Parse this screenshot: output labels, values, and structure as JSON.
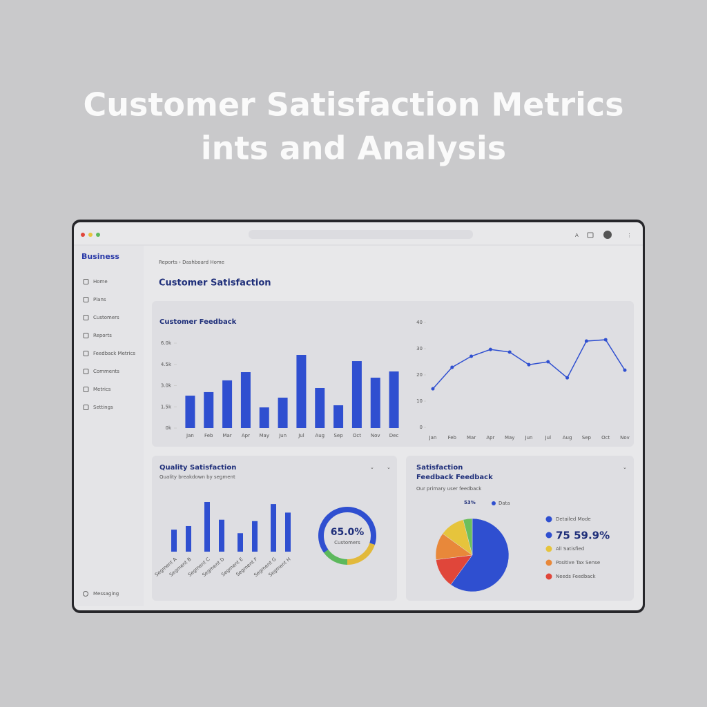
{
  "header": {
    "title_lines": [
      "Customer Satisfaction Metrics",
      "ints and Analysis"
    ]
  },
  "sidebar": {
    "brand": "Business",
    "nav": [
      "Home",
      "Plans",
      "Customers",
      "Reports",
      "Feedback Metrics",
      "Comments",
      "Metrics",
      "Settings"
    ],
    "footer": "Messaging"
  },
  "breadcrumb": "Reports  ›  Dashboard Home",
  "page_title": "Customer Satisfaction",
  "feedback_panel": {
    "title": "Customer Feedback",
    "bar_chart": {
      "type": "bar",
      "categories": [
        "Jan",
        "Feb",
        "Mar",
        "Apr",
        "May",
        "Jun",
        "Jul",
        "Aug",
        "Sep",
        "Oct",
        "Nov",
        "Dec"
      ],
      "values": [
        2290,
        2540,
        3370,
        3950,
        1460,
        2150,
        5170,
        2830,
        1610,
        4730,
        3560,
        4000
      ],
      "color": "#2f4fd0",
      "ylim": [
        0,
        6000
      ],
      "yticks": [
        {
          "value": 0,
          "label": "0k"
        },
        {
          "value": 1500,
          "label": "1.5k"
        },
        {
          "value": 3000,
          "label": "3.0k"
        },
        {
          "value": 4500,
          "label": "4.5k"
        },
        {
          "value": 6000,
          "label": "6.0k"
        }
      ]
    },
    "line_chart": {
      "type": "line",
      "categories": [
        "Jan",
        "Feb",
        "Mar",
        "Apr",
        "May",
        "Jun",
        "Jul",
        "Aug",
        "Sep",
        "Oct",
        "Nov"
      ],
      "values": [
        14.7,
        22.9,
        27.1,
        29.7,
        28.7,
        23.9,
        25,
        18.9,
        32.9,
        33.4,
        21.8
      ],
      "color": "#2f4fd0",
      "ylim": [
        0,
        40
      ],
      "yticks": [
        0,
        10,
        20,
        30,
        40
      ]
    }
  },
  "quality_panel": {
    "title": "Quality Satisfaction",
    "subtitle": "Quality breakdown by segment",
    "bar_chart": {
      "type": "bar",
      "categories": [
        "Segment A",
        "Segment B",
        "Segment C",
        "Segment D",
        "Segment E",
        "Segment F",
        "Segment G",
        "Segment H"
      ],
      "values": [
        31,
        36,
        70,
        45,
        26,
        43,
        67,
        55
      ],
      "color": "#2f4fd0"
    },
    "donut": {
      "type": "pie",
      "values": [
        65,
        20,
        15
      ],
      "colors": [
        "#2f4fd0",
        "#e2b93b",
        "#5cb85c"
      ],
      "center_label": "65.0%",
      "caption": "Customers"
    }
  },
  "pie_panel": {
    "title_lines": [
      "Satisfaction",
      "Feedback Feedback"
    ],
    "subtitle": "Our primary user feedback",
    "top_legend": [
      "53%",
      "Data"
    ],
    "pie": {
      "type": "pie",
      "values": [
        60,
        13,
        12,
        11,
        4
      ],
      "colors": [
        "#2f4fd0",
        "#e0463a",
        "#e8883a",
        "#e6c43c",
        "#6cbf5c"
      ]
    },
    "legend": [
      {
        "label": "Detailed Mode",
        "color": "#2f4fd0"
      },
      {
        "label": "All Satisfied",
        "color": "#e6c43c"
      },
      {
        "label": "Positive Tax Sense",
        "color": "#e8883a"
      },
      {
        "label": "Needs Feedback",
        "color": "#e0463a"
      }
    ],
    "highlight": "75 59.9%"
  }
}
